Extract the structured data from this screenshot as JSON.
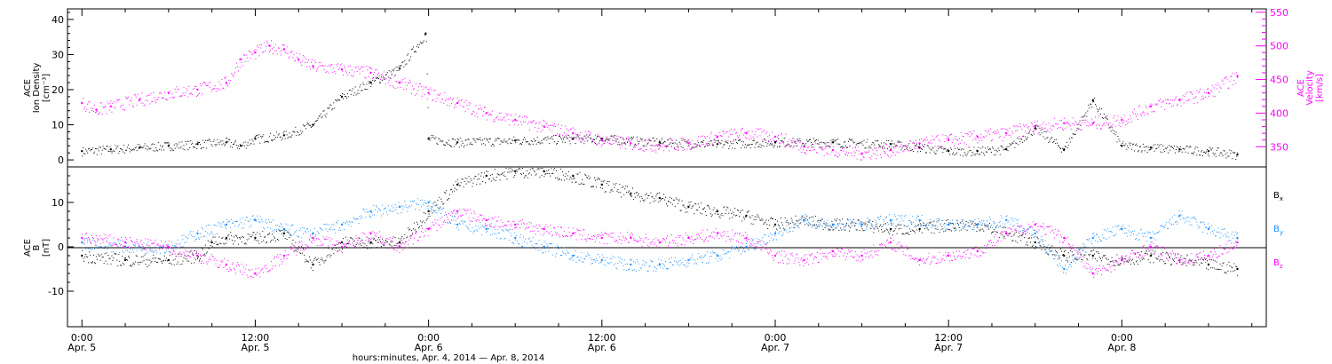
{
  "colors": {
    "black": "#000000",
    "magenta": "#ff00ff",
    "blue": "#1e90ff"
  },
  "chart_data": [
    {
      "type": "scatter",
      "panel": "top",
      "left_axis": {
        "label_lines": [
          "ACE",
          "Ion Density",
          "[cm⁻³]"
        ],
        "ylim": [
          -2,
          43
        ],
        "ticks": [
          0,
          10,
          20,
          30,
          40
        ]
      },
      "right_axis": {
        "label_lines": [
          "ACE",
          "Velocity",
          "[km/s]"
        ],
        "ylim": [
          320,
          555
        ],
        "ticks": [
          350,
          400,
          450,
          500,
          550
        ]
      },
      "series": [
        {
          "color": "black",
          "axis": "left",
          "x": [
            0,
            2,
            4,
            6,
            8,
            10,
            11,
            12,
            14,
            16,
            18,
            20,
            22,
            23.8,
            24,
            26,
            30,
            34,
            36,
            40,
            44,
            48,
            52,
            56,
            58,
            60,
            62,
            64,
            66,
            68,
            70,
            72,
            74,
            76,
            78,
            80
          ],
          "y": [
            2.5,
            3,
            3.5,
            4,
            4.5,
            5,
            4,
            6,
            7,
            10,
            18,
            22,
            26,
            36,
            6,
            5,
            5.5,
            6,
            6,
            5,
            4.5,
            5,
            5,
            4.5,
            3.5,
            2.5,
            2.5,
            3,
            9,
            3,
            17,
            4,
            3.5,
            3,
            2.5,
            1.5
          ]
        },
        {
          "color": "magenta",
          "axis": "right",
          "x": [
            0,
            1,
            2,
            4,
            6,
            8,
            10,
            11,
            12,
            13,
            14,
            15,
            16,
            18,
            20,
            22,
            24,
            26,
            28,
            30,
            32,
            34,
            36,
            38,
            40,
            42,
            44,
            46,
            48,
            50,
            52,
            54,
            56,
            58,
            60,
            62,
            64,
            66,
            68,
            70,
            72,
            74,
            76,
            78,
            80
          ],
          "y": [
            415,
            405,
            410,
            420,
            430,
            435,
            445,
            480,
            490,
            500,
            495,
            480,
            470,
            465,
            460,
            445,
            430,
            415,
            400,
            390,
            380,
            370,
            360,
            355,
            352,
            355,
            365,
            370,
            365,
            350,
            345,
            340,
            345,
            355,
            360,
            365,
            370,
            380,
            385,
            385,
            390,
            410,
            420,
            430,
            455
          ]
        }
      ]
    },
    {
      "type": "scatter",
      "panel": "bottom",
      "left_axis": {
        "label_lines": [
          "ACE",
          "B",
          "[nT]"
        ],
        "ylim": [
          -18,
          18
        ],
        "ticks": [
          -10,
          0,
          10
        ]
      },
      "series": [
        {
          "name": "Bx",
          "color": "black",
          "x": [
            0,
            3,
            6,
            8,
            9,
            10,
            12,
            14,
            16,
            18,
            20,
            22,
            24,
            26,
            28,
            30,
            32,
            34,
            36,
            38,
            40,
            42,
            44,
            46,
            48,
            50,
            52,
            54,
            56,
            58,
            60,
            62,
            64,
            66,
            68,
            70,
            72,
            74,
            76,
            78,
            80
          ],
          "y": [
            -2,
            -3,
            -3,
            -2,
            1,
            2,
            2,
            3,
            -4,
            1,
            1,
            1,
            8,
            14,
            16,
            17,
            17,
            16,
            14,
            12,
            11,
            9,
            8,
            7,
            5,
            6,
            5,
            5,
            4,
            4,
            5,
            5,
            3,
            1,
            -2,
            -2,
            -3,
            -2,
            -3,
            -4,
            -5
          ]
        },
        {
          "name": "By",
          "color": "blue",
          "x": [
            0,
            3,
            6,
            8,
            10,
            12,
            14,
            16,
            18,
            20,
            22,
            24,
            26,
            28,
            30,
            32,
            34,
            36,
            38,
            40,
            42,
            44,
            46,
            48,
            50,
            52,
            54,
            56,
            58,
            60,
            62,
            64,
            66,
            68,
            70,
            72,
            74,
            76,
            78,
            80
          ],
          "y": [
            1,
            0,
            0,
            3,
            5,
            6,
            4,
            3,
            5,
            8,
            9,
            10,
            5,
            4,
            2,
            0,
            -2,
            -3,
            -4,
            -4,
            -3,
            -2,
            0,
            3,
            6,
            5,
            5,
            6,
            6,
            5,
            5,
            6,
            3,
            -5,
            2,
            4,
            2,
            7,
            4,
            2
          ]
        },
        {
          "name": "Bz",
          "color": "magenta",
          "x": [
            0,
            3,
            6,
            8,
            10,
            12,
            14,
            16,
            18,
            20,
            22,
            24,
            26,
            28,
            30,
            32,
            34,
            36,
            38,
            40,
            42,
            44,
            46,
            48,
            50,
            52,
            54,
            56,
            58,
            60,
            62,
            64,
            66,
            68,
            70,
            72,
            74,
            76,
            78,
            80
          ],
          "y": [
            2,
            1,
            0,
            -2,
            -4,
            -6,
            -2,
            2,
            0,
            3,
            0,
            4,
            8,
            6,
            5,
            4,
            3,
            2,
            2,
            1,
            2,
            3,
            2,
            -2,
            -3,
            -1,
            -2,
            1,
            -3,
            -2,
            -1,
            3,
            5,
            2,
            -6,
            -3,
            0,
            -3,
            -2,
            1
          ]
        }
      ]
    }
  ],
  "x_axis": {
    "xlim": [
      -1,
      82
    ],
    "ticks": [
      {
        "x": 0,
        "time": "0:00",
        "date": "Apr. 5"
      },
      {
        "x": 12,
        "time": "12:00",
        "date": "Apr. 5"
      },
      {
        "x": 24,
        "time": "0:00",
        "date": "Apr. 6"
      },
      {
        "x": 36,
        "time": "12:00",
        "date": "Apr. 6"
      },
      {
        "x": 48,
        "time": "0:00",
        "date": "Apr. 7"
      },
      {
        "x": 60,
        "time": "12:00",
        "date": "Apr. 7"
      },
      {
        "x": 72,
        "time": "0:00",
        "date": "Apr. 8"
      }
    ],
    "xlabel": "hours:minutes, Apr.  4, 2014 — Apr.  8, 2014"
  },
  "legend": {
    "bx": "B",
    "bx_sub": "x",
    "by": "B",
    "by_sub": "y",
    "bz": "B",
    "bz_sub": "z"
  }
}
